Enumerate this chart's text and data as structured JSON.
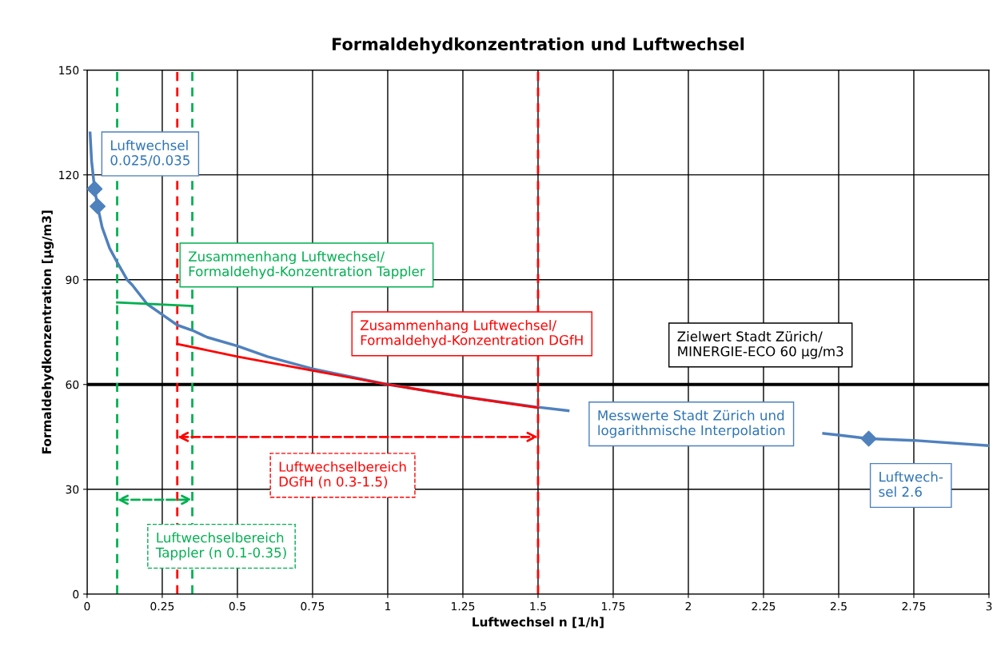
{
  "chart_data": {
    "type": "line",
    "title": "Formaldehydkonzentration und Luftwechsel",
    "xlabel": "Luftwechsel n [1/h]",
    "ylabel": "Formaldehydkonzentration [µg/m3]",
    "series": [
      {
        "color": "#4f81bd",
        "marker": "none",
        "x": [
          0.01,
          0.015,
          0.025,
          0.035,
          0.05,
          0.075,
          0.1,
          0.133,
          0.15,
          0.2,
          0.25,
          0.3,
          0.35,
          0.4,
          0.5,
          0.6,
          0.75,
          1,
          1.25,
          1.5,
          1.6,
          1.75,
          2,
          2.25,
          2.45,
          2.5,
          2.6,
          2.75,
          3
        ],
        "values": [
          132,
          124,
          116,
          111,
          105,
          99,
          95,
          90,
          88.5,
          83,
          80,
          77,
          75.5,
          73.5,
          71,
          68,
          64.5,
          60,
          56.5,
          53.5,
          52.5,
          null,
          null,
          null,
          46,
          45.5,
          44.5,
          44,
          42.5
        ]
      },
      {
        "type": "scatter",
        "color": "#4f81bd",
        "marker": "diamond",
        "x": [
          0.025,
          0.035,
          2.6
        ],
        "values": [
          116,
          111,
          44.5
        ]
      },
      {
        "color": "#00b050",
        "marker": "none",
        "x": [
          0.1,
          0.35
        ],
        "values": [
          83.5,
          82.5
        ]
      },
      {
        "color": "#ff0000",
        "marker": "none",
        "x": [
          0.3,
          0.5,
          0.75,
          1,
          1.25,
          1.5
        ],
        "values": [
          71.6,
          68,
          64,
          60,
          56.5,
          53.3
        ]
      }
    ],
    "ref_lines": [
      {
        "axis": "y",
        "value": 60,
        "color": "#000000",
        "line_style": "solid"
      },
      {
        "axis": "x",
        "value": 0.1,
        "color": "#00b050",
        "line_style": "dashed"
      },
      {
        "axis": "x",
        "value": 0.35,
        "color": "#00b050",
        "line_style": "dashed"
      },
      {
        "axis": "x",
        "value": 0.3,
        "color": "#ff0000",
        "line_style": "dashed"
      },
      {
        "axis": "x",
        "value": 1.5,
        "color": "#ff0000",
        "line_style": "dashed"
      }
    ],
    "annotations": [
      "Luftwechsel\n0.025/0.035",
      "Zusammenhang Luftwechsel/\nFormaldehyd-Konzentration Tappler",
      "Zusammenhang Luftwechsel/\nFormaldehyd-Konzentration DGfH",
      "Zielwert Stadt Zürich/\nMINERGIE-ECO 60 µg/m3",
      "Messwerte Stadt Zürich und\nlogarithmische Interpolation",
      "Luftwech-\nsel 2.6",
      "Luftwechselbereich\nDGfH (n 0.3-1.5)",
      "Luftwechselbereich\nTappler (n 0.1-0.35)"
    ],
    "xlim": [
      0,
      3
    ],
    "xticks": [
      0,
      0.25,
      0.5,
      0.75,
      1,
      1.25,
      1.5,
      1.75,
      2,
      2.25,
      2.5,
      2.75,
      3
    ],
    "ylim": [
      0,
      150
    ],
    "yticks": [
      0,
      30,
      60,
      90,
      120,
      150
    ],
    "grid": true,
    "legend": false
  }
}
